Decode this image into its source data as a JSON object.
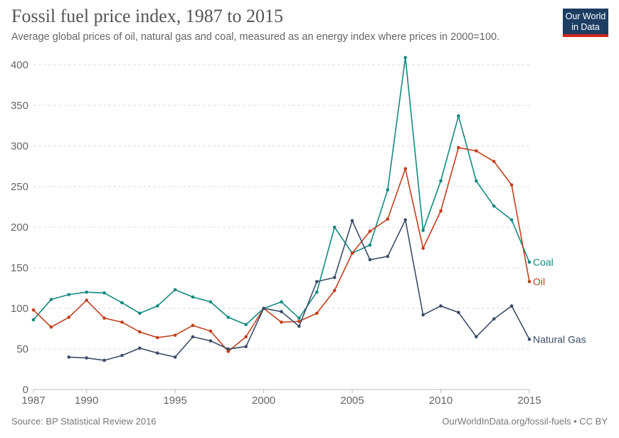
{
  "header": {
    "title": "Fossil fuel price index, 1987 to 2015",
    "subtitle": "Average global prices of oil, natural gas and coal, measured as an energy index where prices in 2000=100.",
    "logo": "Our World in Data"
  },
  "footer": {
    "source": "Source: BP Statistical Review 2016",
    "credit": "OurWorldInData.org/fossil-fuels • CC BY"
  },
  "chart_data": {
    "type": "line",
    "title": "Fossil fuel price index, 1987 to 2015",
    "xlim": [
      1987,
      2015
    ],
    "ylim": [
      0,
      400
    ],
    "x_ticks": [
      1987,
      1990,
      1995,
      2000,
      2005,
      2010,
      2015
    ],
    "y_ticks": [
      0,
      50,
      100,
      150,
      200,
      250,
      300,
      350,
      400
    ],
    "grid": "horizontal dashed",
    "legend": "inline labels at line ends",
    "series": [
      {
        "name": "Coal",
        "color": "#15897f",
        "start": 1987,
        "values": [
          86,
          111,
          117,
          120,
          119,
          107,
          94,
          103,
          123,
          114,
          108,
          89,
          80,
          100,
          108,
          88,
          120,
          200,
          168,
          178,
          246,
          409,
          196,
          257,
          337,
          257,
          226,
          209,
          157
        ]
      },
      {
        "name": "Oil",
        "color": "#c1401c",
        "start": 1987,
        "values": [
          98,
          77,
          89,
          110,
          88,
          83,
          71,
          64,
          67,
          79,
          72,
          47,
          65,
          100,
          83,
          84,
          94,
          122,
          168,
          195,
          210,
          272,
          174,
          220,
          298,
          294,
          281,
          252,
          133
        ]
      },
      {
        "name": "Natural Gas",
        "color": "#3c4e66",
        "start": 1989,
        "values": [
          40,
          39,
          36,
          42,
          51,
          45,
          40,
          65,
          60,
          50,
          53,
          100,
          96,
          78,
          133,
          138,
          208,
          160,
          164,
          209,
          92,
          103,
          95,
          65,
          87,
          103,
          62
        ]
      }
    ]
  }
}
